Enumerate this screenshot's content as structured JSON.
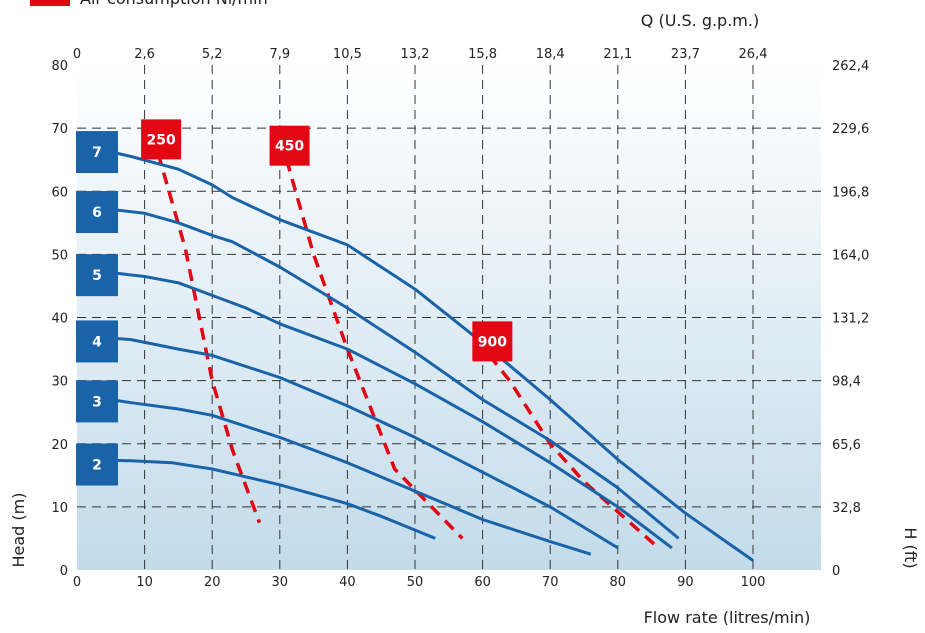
{
  "legend": {
    "label": "Air consumption Nl/min",
    "marker_color": "#e30613"
  },
  "chart_data": {
    "type": "line",
    "xlabel": "Flow rate (litres/min)",
    "ylabel": "Head (m)",
    "x2label": "Q (U.S. g.p.m.)",
    "y2label": "H (ft)",
    "xlim": [
      0,
      110
    ],
    "ylim": [
      0,
      80
    ],
    "x_ticks": [
      "0",
      "10",
      "20",
      "30",
      "40",
      "50",
      "60",
      "70",
      "80",
      "90",
      "100"
    ],
    "y_ticks": [
      "0",
      "10",
      "20",
      "30",
      "40",
      "50",
      "60",
      "70",
      "80"
    ],
    "x2_ticks": [
      "0",
      "2,6",
      "5,2",
      "7,9",
      "10,5",
      "13,2",
      "15,8",
      "18,4",
      "21,1",
      "23,7",
      "26,4"
    ],
    "y2_ticks": [
      "0",
      "32,8",
      "65,6",
      "98,4",
      "131,2",
      "164,0",
      "196,8",
      "229,6",
      "262,4"
    ],
    "grid": true,
    "series": [
      {
        "name": "7",
        "color": "#1a63a8",
        "x": [
          2,
          8,
          15,
          20,
          23,
          30,
          40,
          50,
          60,
          70,
          80,
          90,
          100
        ],
        "y": [
          67,
          65.5,
          63.5,
          61,
          59,
          55.5,
          51.5,
          44.5,
          36,
          27,
          17.5,
          9,
          1.5
        ]
      },
      {
        "name": "6",
        "color": "#1a63a8",
        "x": [
          2,
          10,
          15,
          20,
          23,
          30,
          40,
          50,
          60,
          70,
          80,
          89
        ],
        "y": [
          57.5,
          56.5,
          55,
          53,
          52,
          48,
          41.5,
          34.5,
          27,
          20.5,
          13,
          5
        ]
      },
      {
        "name": "5",
        "color": "#1a63a8",
        "x": [
          2,
          10,
          15,
          20,
          25,
          30,
          40,
          50,
          60,
          70,
          80,
          88
        ],
        "y": [
          47.5,
          46.5,
          45.5,
          43.5,
          41.5,
          39,
          35,
          29.5,
          23.5,
          17,
          10,
          3.5
        ]
      },
      {
        "name": "4",
        "color": "#1a63a8",
        "x": [
          2,
          8,
          15,
          20,
          30,
          40,
          50,
          60,
          70,
          80
        ],
        "y": [
          37,
          36.5,
          35,
          34,
          30.5,
          26,
          21,
          15.5,
          10,
          3.5
        ]
      },
      {
        "name": "3",
        "color": "#1a63a8",
        "x": [
          2,
          8,
          15,
          20,
          30,
          40,
          50,
          60,
          70,
          76
        ],
        "y": [
          27.5,
          26.5,
          25.5,
          24.5,
          21,
          17,
          12.5,
          8,
          4.5,
          2.5
        ]
      },
      {
        "name": "2",
        "color": "#1a63a8",
        "x": [
          2,
          8,
          14,
          20,
          30,
          40,
          45,
          53
        ],
        "y": [
          17.5,
          17.3,
          17,
          16,
          13.5,
          10.5,
          8.5,
          5
        ]
      }
    ],
    "air_consumption": [
      {
        "name": "250",
        "color": "#e30613",
        "x": [
          12,
          16,
          20,
          23,
          27
        ],
        "y": [
          66,
          51,
          30,
          19,
          7.5
        ]
      },
      {
        "name": "450",
        "color": "#e30613",
        "x": [
          31,
          35,
          40,
          47,
          57
        ],
        "y": [
          65,
          50,
          35,
          16,
          5
        ]
      },
      {
        "name": "900",
        "color": "#e30613",
        "x": [
          61,
          64,
          70,
          75,
          86
        ],
        "y": [
          34,
          30,
          20,
          14,
          3.5
        ]
      }
    ]
  }
}
